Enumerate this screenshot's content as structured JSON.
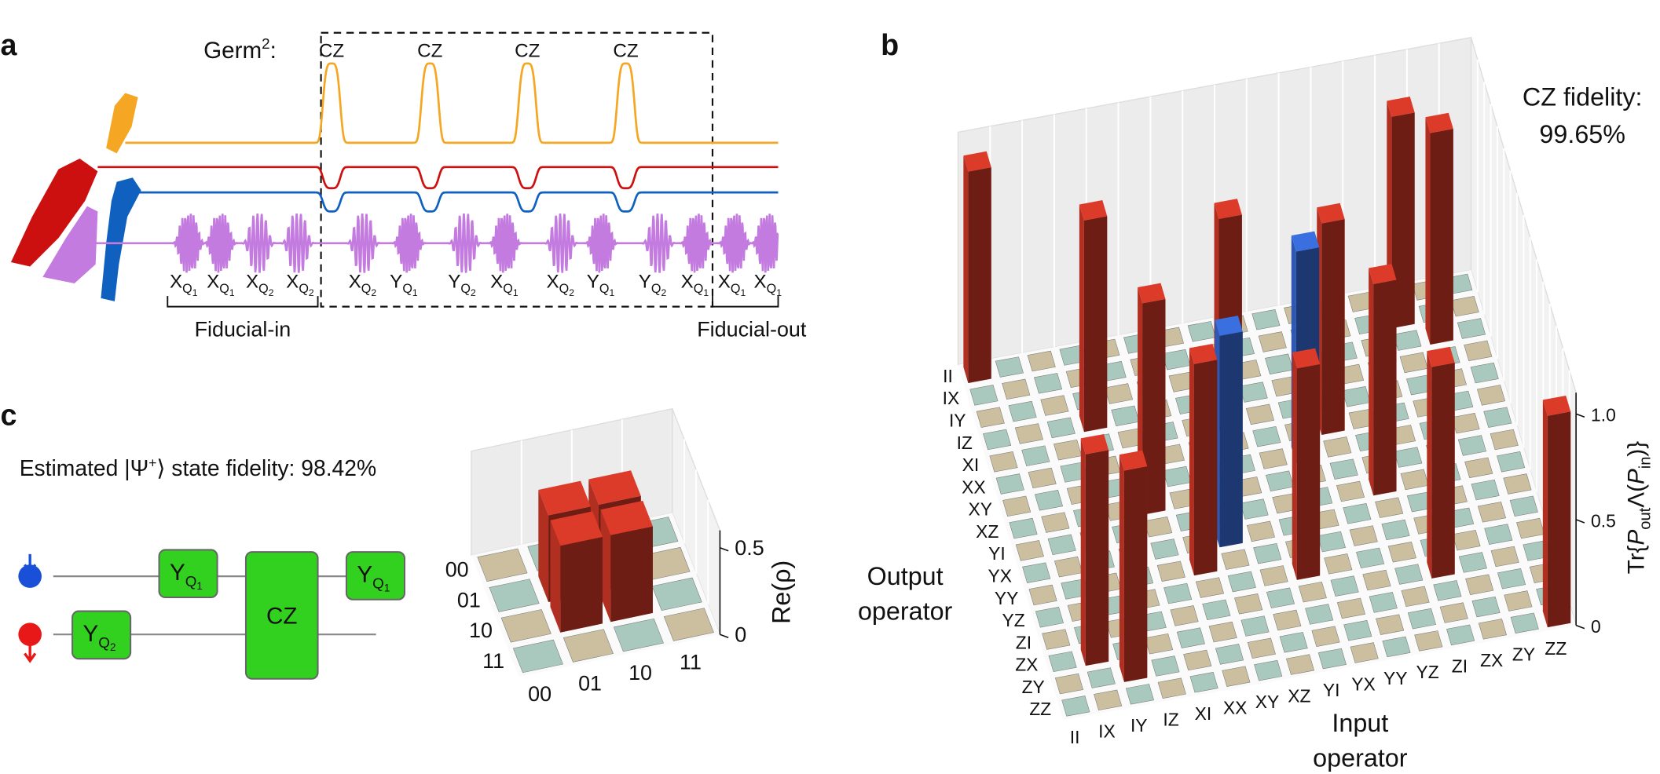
{
  "panel_a": {
    "label": "a",
    "germ": "Germ",
    "germ_power": "2",
    "germ_colon": ":",
    "pulses": [
      "CZ",
      "CZ",
      "CZ",
      "CZ"
    ],
    "gates": [
      {
        "op": "X",
        "q": "Q",
        "n": "1"
      },
      {
        "op": "X",
        "q": "Q",
        "n": "1"
      },
      {
        "op": "X",
        "q": "Q",
        "n": "2"
      },
      {
        "op": "X",
        "q": "Q",
        "n": "2"
      },
      {
        "op": "X",
        "q": "Q",
        "n": "2"
      },
      {
        "op": "Y",
        "q": "Q",
        "n": "1"
      },
      {
        "op": "Y",
        "q": "Q",
        "n": "2"
      },
      {
        "op": "X",
        "q": "Q",
        "n": "1"
      },
      {
        "op": "X",
        "q": "Q",
        "n": "2"
      },
      {
        "op": "Y",
        "q": "Q",
        "n": "1"
      },
      {
        "op": "Y",
        "q": "Q",
        "n": "2"
      },
      {
        "op": "X",
        "q": "Q",
        "n": "1"
      },
      {
        "op": "X",
        "q": "Q",
        "n": "1"
      },
      {
        "op": "X",
        "q": "Q",
        "n": "1"
      }
    ],
    "fiducial_in": "Fiducial-in",
    "fiducial_out": "Fiducial-out"
  },
  "panel_b": {
    "label": "b",
    "fidelity_title": "CZ fidelity:",
    "fidelity_value": "99.65%",
    "output_operators": [
      "II",
      "IX",
      "IY",
      "IZ",
      "XI",
      "XX",
      "XY",
      "XZ",
      "YI",
      "YX",
      "YY",
      "YZ",
      "ZI",
      "ZX",
      "ZY",
      "ZZ"
    ],
    "input_operators": [
      "II",
      "IX",
      "IY",
      "IZ",
      "XI",
      "XX",
      "XY",
      "XZ",
      "YI",
      "YX",
      "YY",
      "YZ",
      "ZI",
      "ZX",
      "ZY",
      "ZZ"
    ],
    "output_axis": [
      "Output",
      "operator"
    ],
    "input_axis": [
      "Input",
      "operator"
    ],
    "z_axis": {
      "prefix": "Tr{",
      "p1": "P",
      "s1": "out",
      "mid": "Λ(",
      "p2": "P",
      "s2": "in",
      "suffix": ")}"
    },
    "zlim": [
      0,
      1.1
    ],
    "zticks": [
      0,
      0.5,
      {
        "value": 1,
        "label": "1.0"
      }
    ],
    "bars": [
      {
        "out": "II",
        "in": "II",
        "value": 1,
        "color": "#dc3b2a"
      },
      {
        "out": "IX",
        "in": "ZX",
        "value": 1,
        "color": "#dc3b2a"
      },
      {
        "out": "IY",
        "in": "ZY",
        "value": 1,
        "color": "#dc3b2a"
      },
      {
        "out": "IZ",
        "in": "IZ",
        "value": 1,
        "color": "#dc3b2a"
      },
      {
        "out": "XI",
        "in": "XZ",
        "value": 1,
        "color": "#dc3b2a"
      },
      {
        "out": "XX",
        "in": "YY",
        "value": 1,
        "color": "#dc3b2a"
      },
      {
        "out": "XY",
        "in": "YX",
        "value": 1,
        "color": "#3a6fe0"
      },
      {
        "out": "XZ",
        "in": "XI",
        "value": 1,
        "color": "#dc3b2a"
      },
      {
        "out": "YI",
        "in": "YZ",
        "value": 1,
        "color": "#dc3b2a"
      },
      {
        "out": "YX",
        "in": "XY",
        "value": 1,
        "color": "#3a6fe0"
      },
      {
        "out": "YY",
        "in": "XX",
        "value": 1,
        "color": "#dc3b2a"
      },
      {
        "out": "YZ",
        "in": "YI",
        "value": 1,
        "color": "#dc3b2a"
      },
      {
        "out": "ZI",
        "in": "ZI",
        "value": 1,
        "color": "#dc3b2a"
      },
      {
        "out": "ZX",
        "in": "IX",
        "value": 1,
        "color": "#dc3b2a"
      },
      {
        "out": "ZY",
        "in": "IY",
        "value": 1,
        "color": "#dc3b2a"
      },
      {
        "out": "ZZ",
        "in": "ZZ",
        "value": 1,
        "color": "#dc3b2a"
      }
    ]
  },
  "panel_c": {
    "label": "c",
    "fidelity_text": {
      "pre": "Estimated |Ψ",
      "sup": "+",
      "post": "⟩ state fidelity: 98.42%"
    },
    "circuit": [
      {
        "op": "Y",
        "q": "Q",
        "n": "1"
      },
      {
        "op": "CZ"
      },
      {
        "op": "Y",
        "q": "Q",
        "n": "1"
      },
      {
        "op": "Y",
        "q": "Q",
        "n": "2"
      }
    ],
    "rows": [
      "00",
      "01",
      "10",
      "11"
    ],
    "cols": [
      "00",
      "01",
      "10",
      "11"
    ],
    "zlim": [
      0,
      0.6
    ],
    "zticks": [
      0,
      0.5
    ],
    "z_label": "Re(ρ)",
    "bars": [
      {
        "row": "01",
        "col": "01",
        "value": 0.5,
        "color": "#dc3b2a"
      },
      {
        "row": "01",
        "col": "10",
        "value": 0.5,
        "color": "#dc3b2a"
      },
      {
        "row": "10",
        "col": "01",
        "value": 0.5,
        "color": "#dc3b2a"
      },
      {
        "row": "10",
        "col": "10",
        "value": 0.5,
        "color": "#dc3b2a"
      }
    ]
  }
}
